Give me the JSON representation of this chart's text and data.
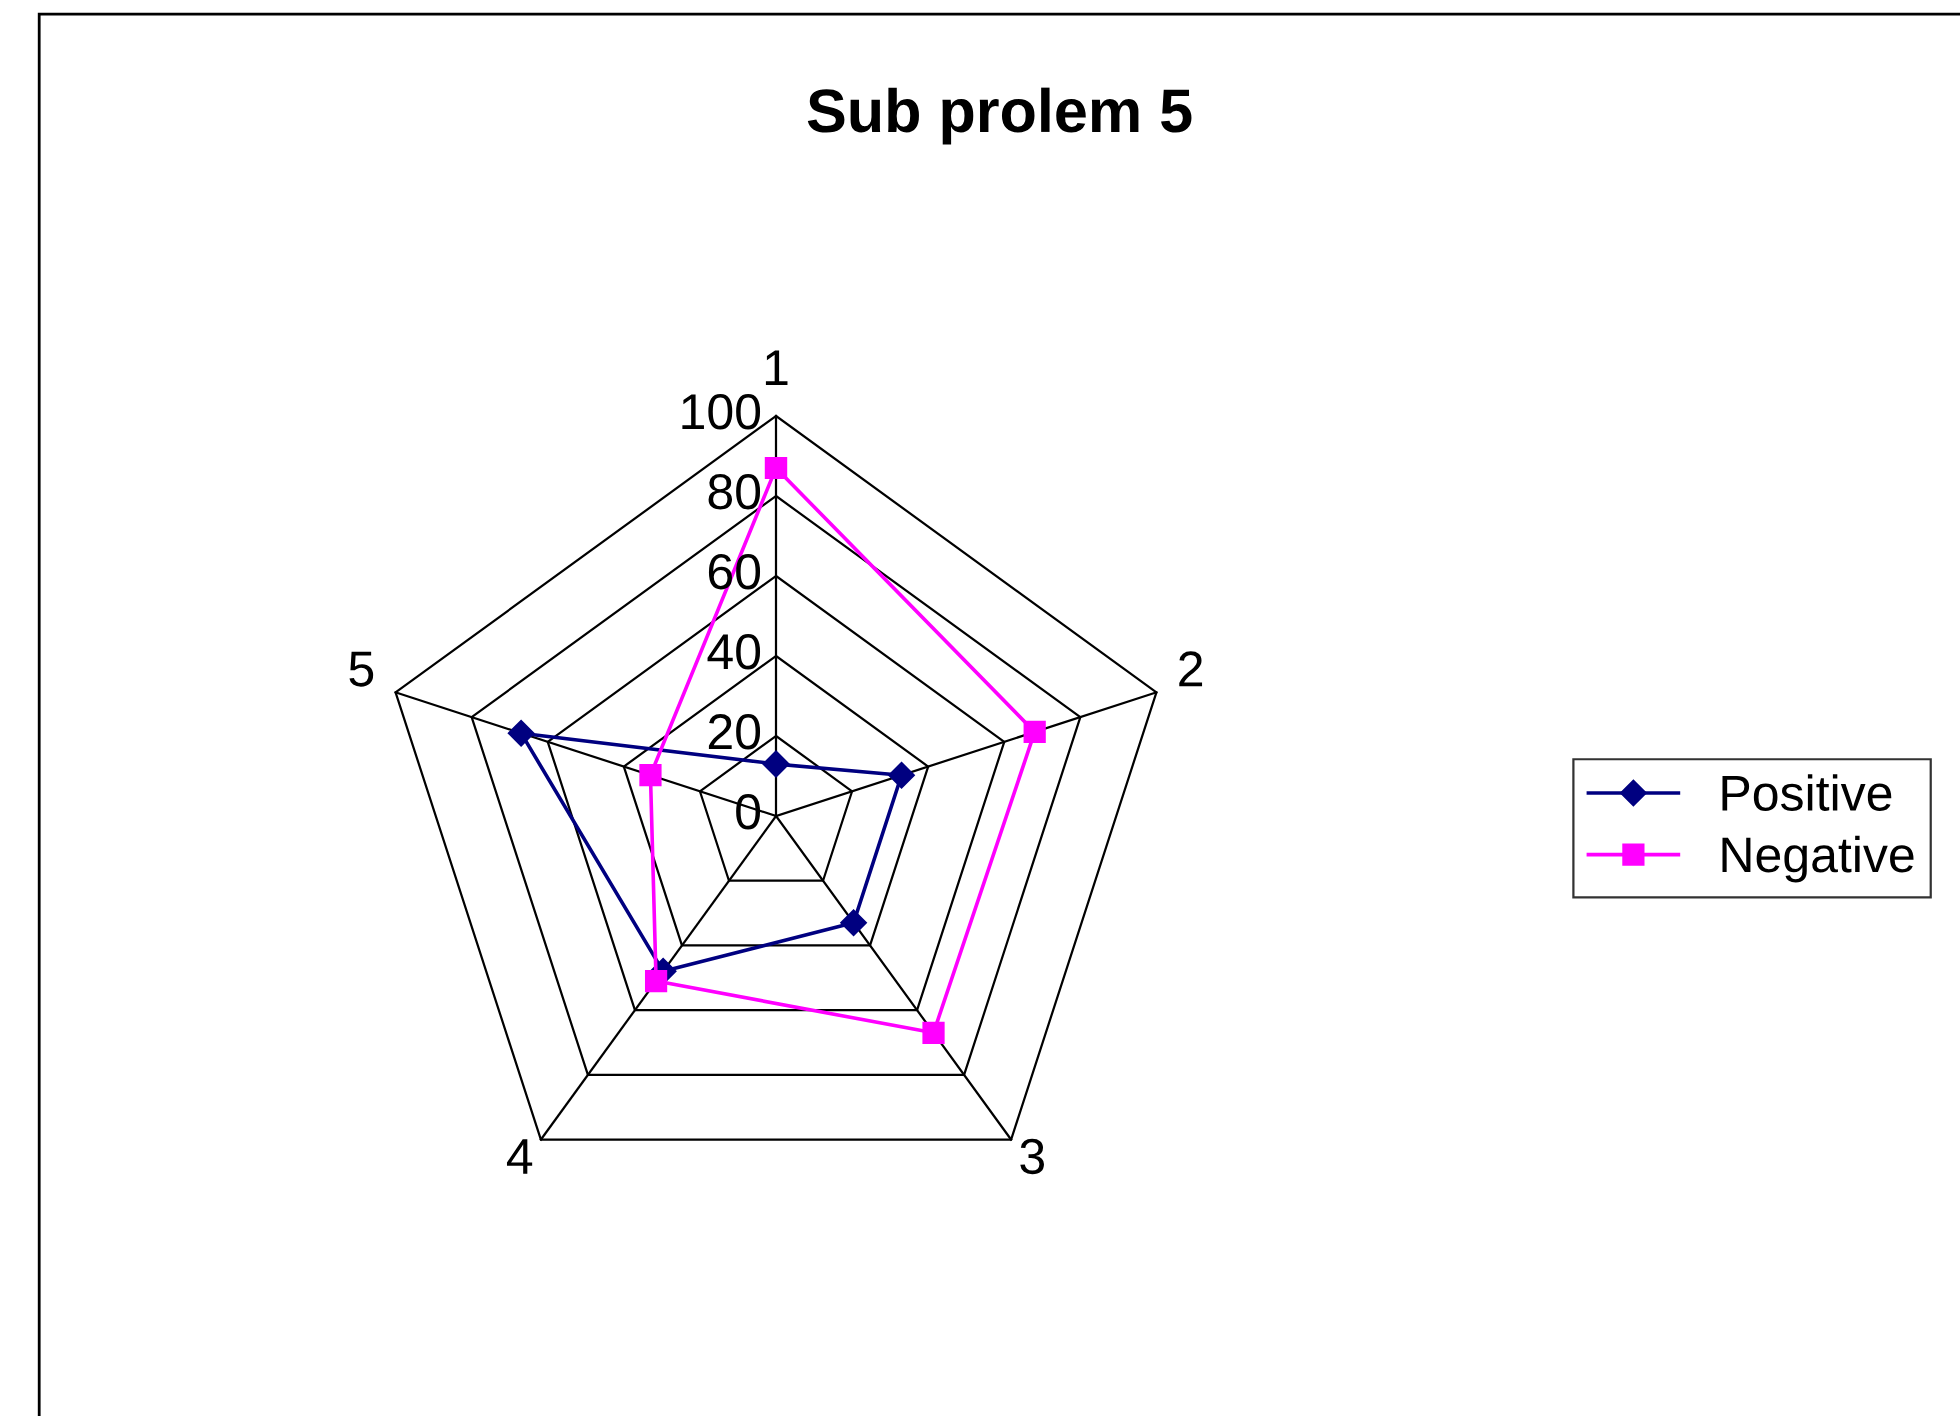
{
  "chart_data": {
    "type": "radar",
    "title": "Sub prolem 5",
    "categories": [
      "1",
      "2",
      "3",
      "4",
      "5"
    ],
    "series": [
      {
        "name": "Positive",
        "color": "#000080",
        "values": [
          13,
          33,
          33,
          48,
          67
        ],
        "marker": "diamond"
      },
      {
        "name": "Negative",
        "color": "#ff00ff",
        "values": [
          87,
          68,
          67,
          51,
          33
        ],
        "marker": "square"
      }
    ],
    "ylim": [
      0,
      100
    ],
    "yticks": [
      0,
      20,
      40,
      60,
      80,
      100
    ],
    "grid": true,
    "legend": "right",
    "line_style": "solid"
  }
}
